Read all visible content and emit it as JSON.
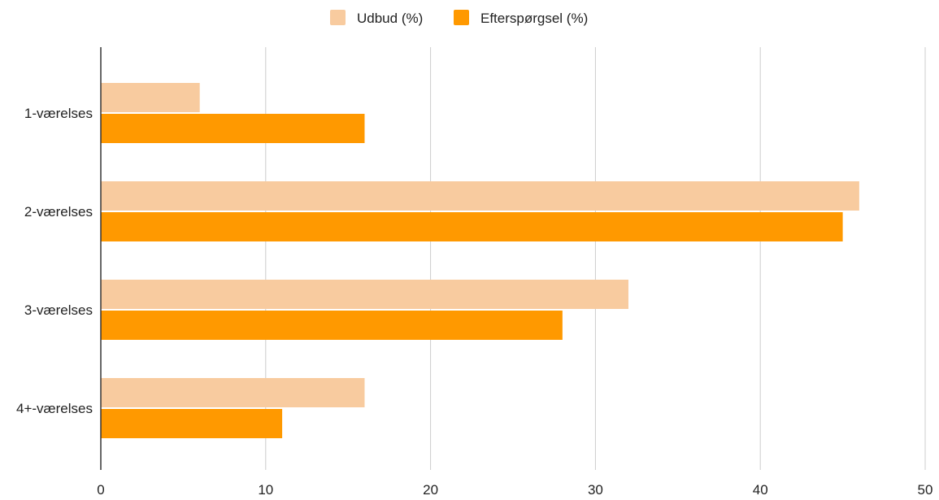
{
  "chart_data": {
    "type": "bar",
    "orientation": "horizontal",
    "title": "",
    "xlabel": "",
    "ylabel": "",
    "categories": [
      "1-værelses",
      "2-værelses",
      "3-værelses",
      "4+-værelses"
    ],
    "series": [
      {
        "name": "Udbud (%)",
        "color": "#f8cb9f",
        "values": [
          6,
          46,
          32,
          16
        ]
      },
      {
        "name": "Efterspørgsel (%)",
        "color": "#ff9900",
        "values": [
          16,
          45,
          28,
          11
        ]
      }
    ],
    "xlim": [
      0,
      50
    ],
    "xticks": [
      0,
      10,
      20,
      30,
      40,
      50
    ],
    "grid": true,
    "legend_position": "top-center"
  }
}
